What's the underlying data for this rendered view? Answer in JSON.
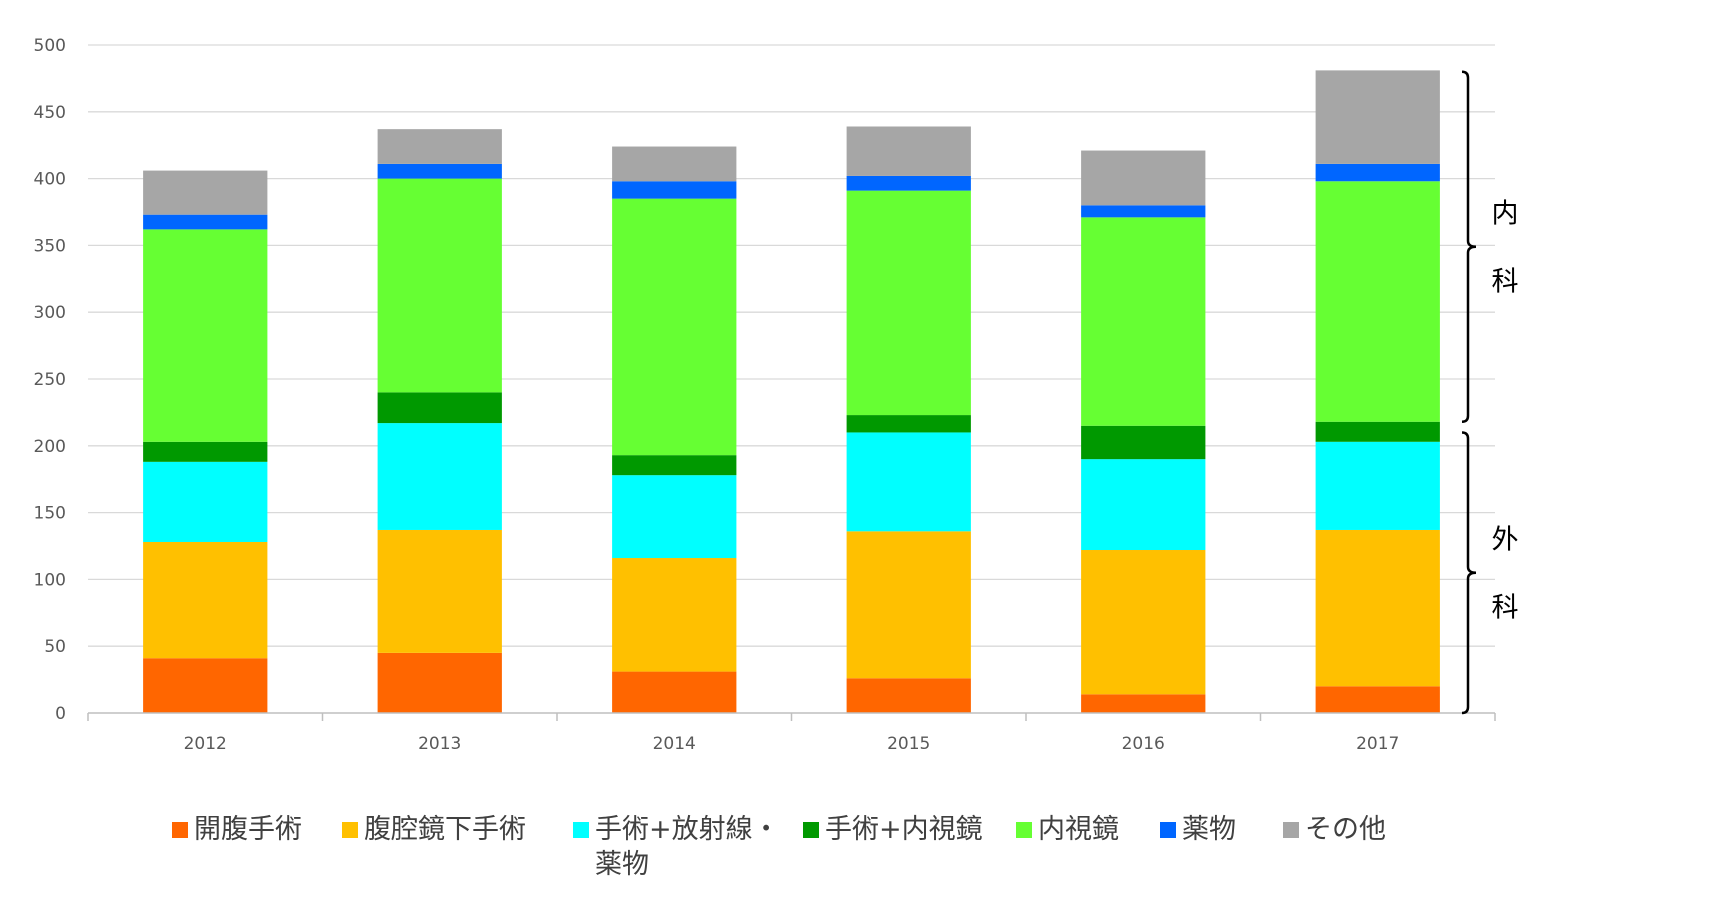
{
  "chart_data": {
    "type": "bar",
    "stacked": true,
    "categories": [
      "2012",
      "2013",
      "2014",
      "2015",
      "2016",
      "2017"
    ],
    "ylim": [
      0,
      500
    ],
    "yticks": [
      0,
      50,
      100,
      150,
      200,
      250,
      300,
      350,
      400,
      450,
      500
    ],
    "grid": true,
    "legend_position": "bottom",
    "series": [
      {
        "name": "開腹手術",
        "color": "#FF6600",
        "values": [
          41,
          45,
          31,
          26,
          14,
          20
        ]
      },
      {
        "name": "腹腔鏡下手術",
        "color": "#FFC000",
        "values": [
          87,
          92,
          85,
          110,
          108,
          117
        ]
      },
      {
        "name": "手術+放射線・薬物",
        "color": "#00FFFF",
        "values": [
          60,
          80,
          62,
          74,
          68,
          66
        ]
      },
      {
        "name": "手術+内視鏡",
        "color": "#009900",
        "values": [
          15,
          23,
          15,
          13,
          25,
          15
        ]
      },
      {
        "name": "内視鏡",
        "color": "#66FF33",
        "values": [
          159,
          160,
          192,
          168,
          156,
          180
        ]
      },
      {
        "name": "薬物",
        "color": "#0066FF",
        "values": [
          11,
          11,
          13,
          11,
          9,
          13
        ]
      },
      {
        "name": "その他",
        "color": "#A6A6A6",
        "values": [
          33,
          26,
          26,
          37,
          41,
          70
        ]
      }
    ],
    "legend_labels": [
      [
        "開腹手術"
      ],
      [
        "腹腔鏡下手術"
      ],
      [
        "手術+放射線・",
        "薬物"
      ],
      [
        "手術+内視鏡"
      ],
      [
        "内視鏡"
      ],
      [
        "薬物"
      ],
      [
        "その他"
      ]
    ],
    "annotations": [
      {
        "label": [
          "内",
          "科"
        ],
        "range": [
          218,
          480
        ]
      },
      {
        "label": [
          "外",
          "科"
        ],
        "range": [
          0,
          210
        ]
      }
    ]
  }
}
